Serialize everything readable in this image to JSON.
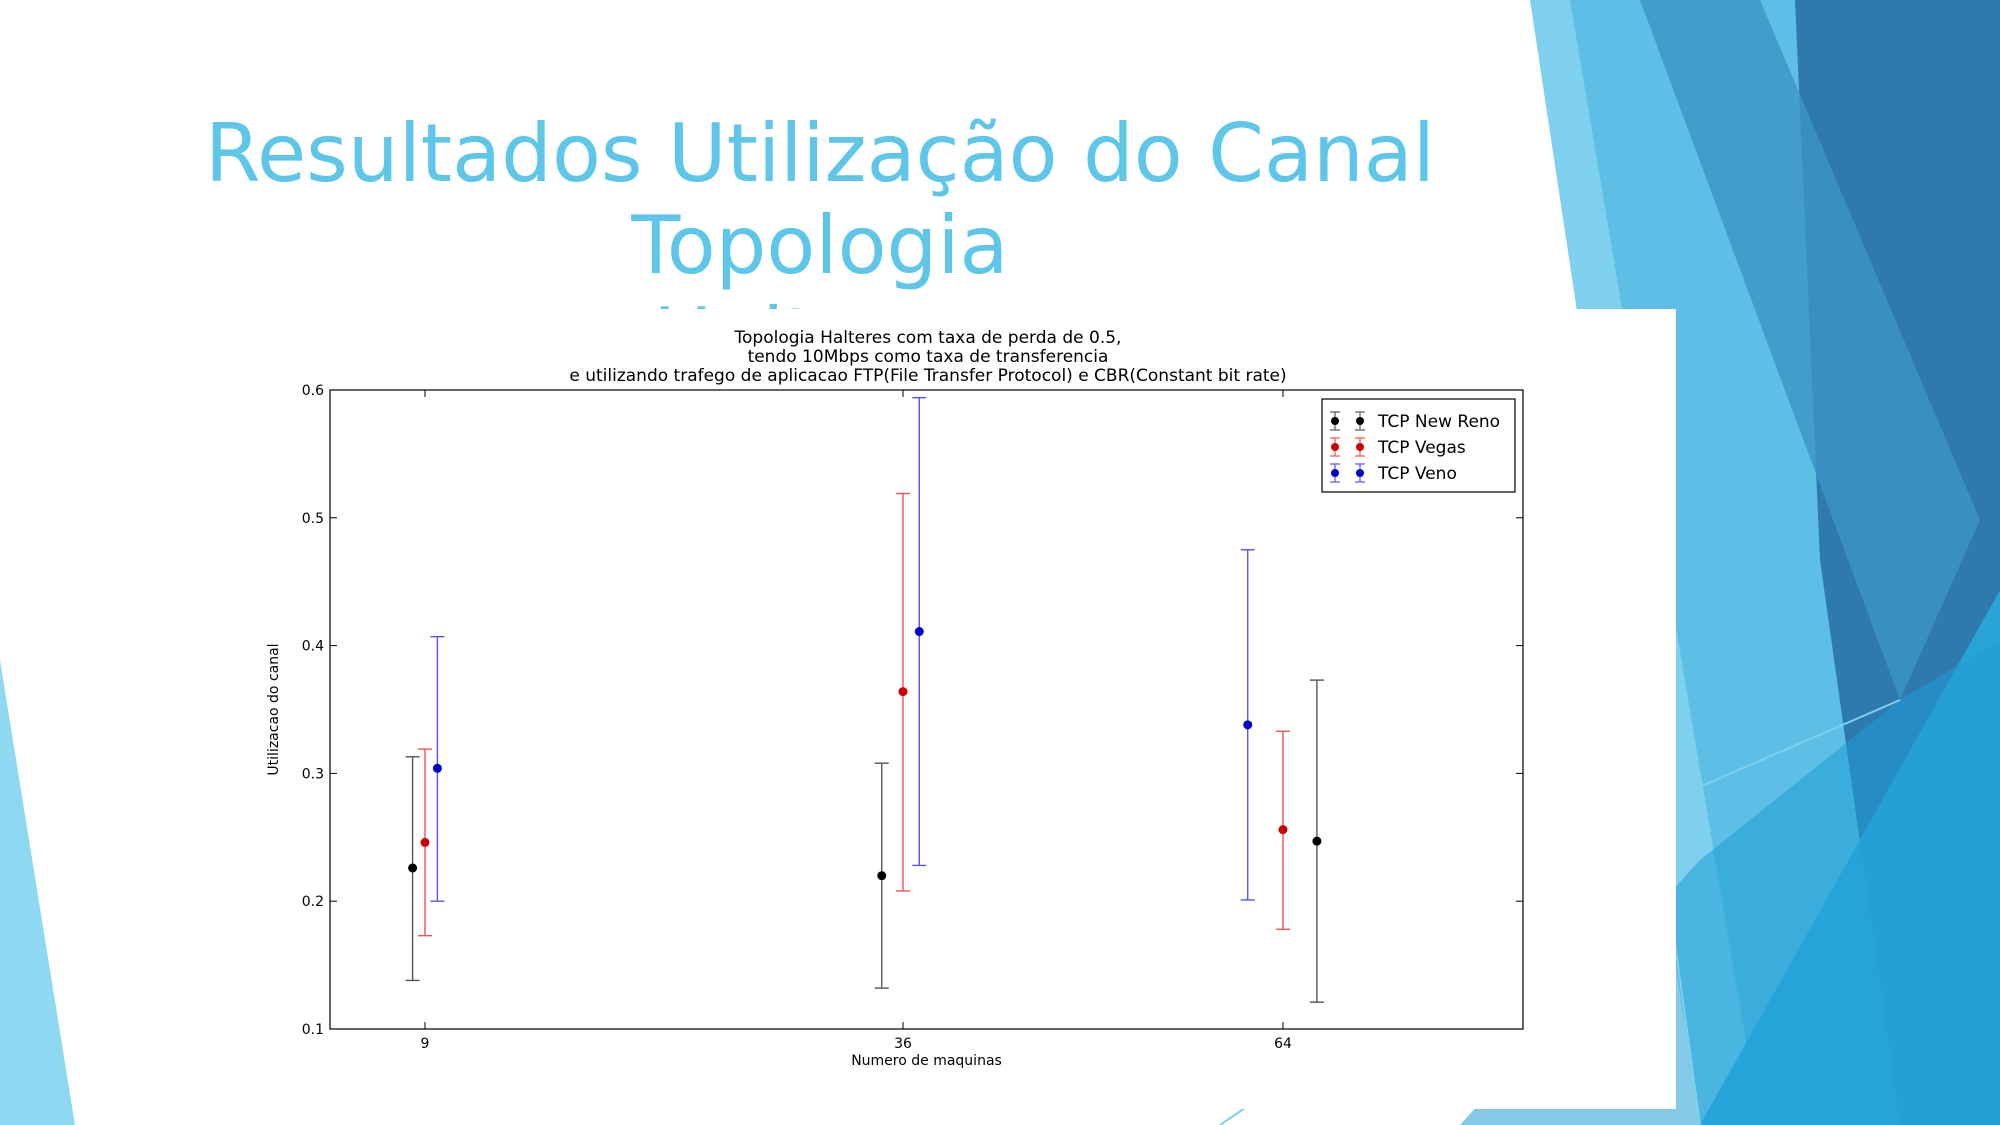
{
  "slide": {
    "title_line1": "Resultados Utilização do Canal Topologia",
    "title_line2": "Halteres"
  },
  "colors": {
    "title": "#5ec6e8",
    "decor_light": "#7fd0ee",
    "decor_mid": "#4fb8e3",
    "decor_dark": "#2e79ad"
  },
  "chart_data": {
    "type": "scatter",
    "title_lines": [
      "Topologia Halteres com taxa de perda de 0.5,",
      "tendo 10Mbps como taxa de transferencia",
      "e utilizando trafego de aplicacao FTP(File Transfer Protocol) e CBR(Constant bit rate)"
    ],
    "xlabel": "Numero de maquinas",
    "ylabel": "Utilizacao do canal",
    "categories": [
      "9",
      "36",
      "64"
    ],
    "ylim": [
      0.1,
      0.6
    ],
    "yticks": [
      "0.1",
      "0.2",
      "0.3",
      "0.4",
      "0.5",
      "0.6"
    ],
    "grid": false,
    "legend_position": "top-right",
    "error_bars": true,
    "series": [
      {
        "name": "TCP New Reno",
        "color": "#000000",
        "bar_color": "#555555",
        "points": [
          {
            "x": 8.3,
            "y": 0.226,
            "ymin": 0.138,
            "ymax": 0.313
          },
          {
            "x": 34.8,
            "y": 0.22,
            "ymin": 0.132,
            "ymax": 0.308
          },
          {
            "x": 66.5,
            "y": 0.247,
            "ymin": 0.121,
            "ymax": 0.373
          }
        ]
      },
      {
        "name": "TCP Vegas",
        "color": "#cc0000",
        "bar_color": "#ee5555",
        "points": [
          {
            "x": 9.0,
            "y": 0.246,
            "ymin": 0.173,
            "ymax": 0.319
          },
          {
            "x": 36.0,
            "y": 0.364,
            "ymin": 0.208,
            "ymax": 0.519
          },
          {
            "x": 64.0,
            "y": 0.256,
            "ymin": 0.178,
            "ymax": 0.333
          }
        ]
      },
      {
        "name": "TCP Veno",
        "color": "#0000cc",
        "bar_color": "#5555ee",
        "points": [
          {
            "x": 9.7,
            "y": 0.304,
            "ymin": 0.2,
            "ymax": 0.407
          },
          {
            "x": 37.2,
            "y": 0.411,
            "ymin": 0.228,
            "ymax": 0.594
          },
          {
            "x": 61.4,
            "y": 0.338,
            "ymin": 0.201,
            "ymax": 0.475
          }
        ]
      }
    ]
  }
}
